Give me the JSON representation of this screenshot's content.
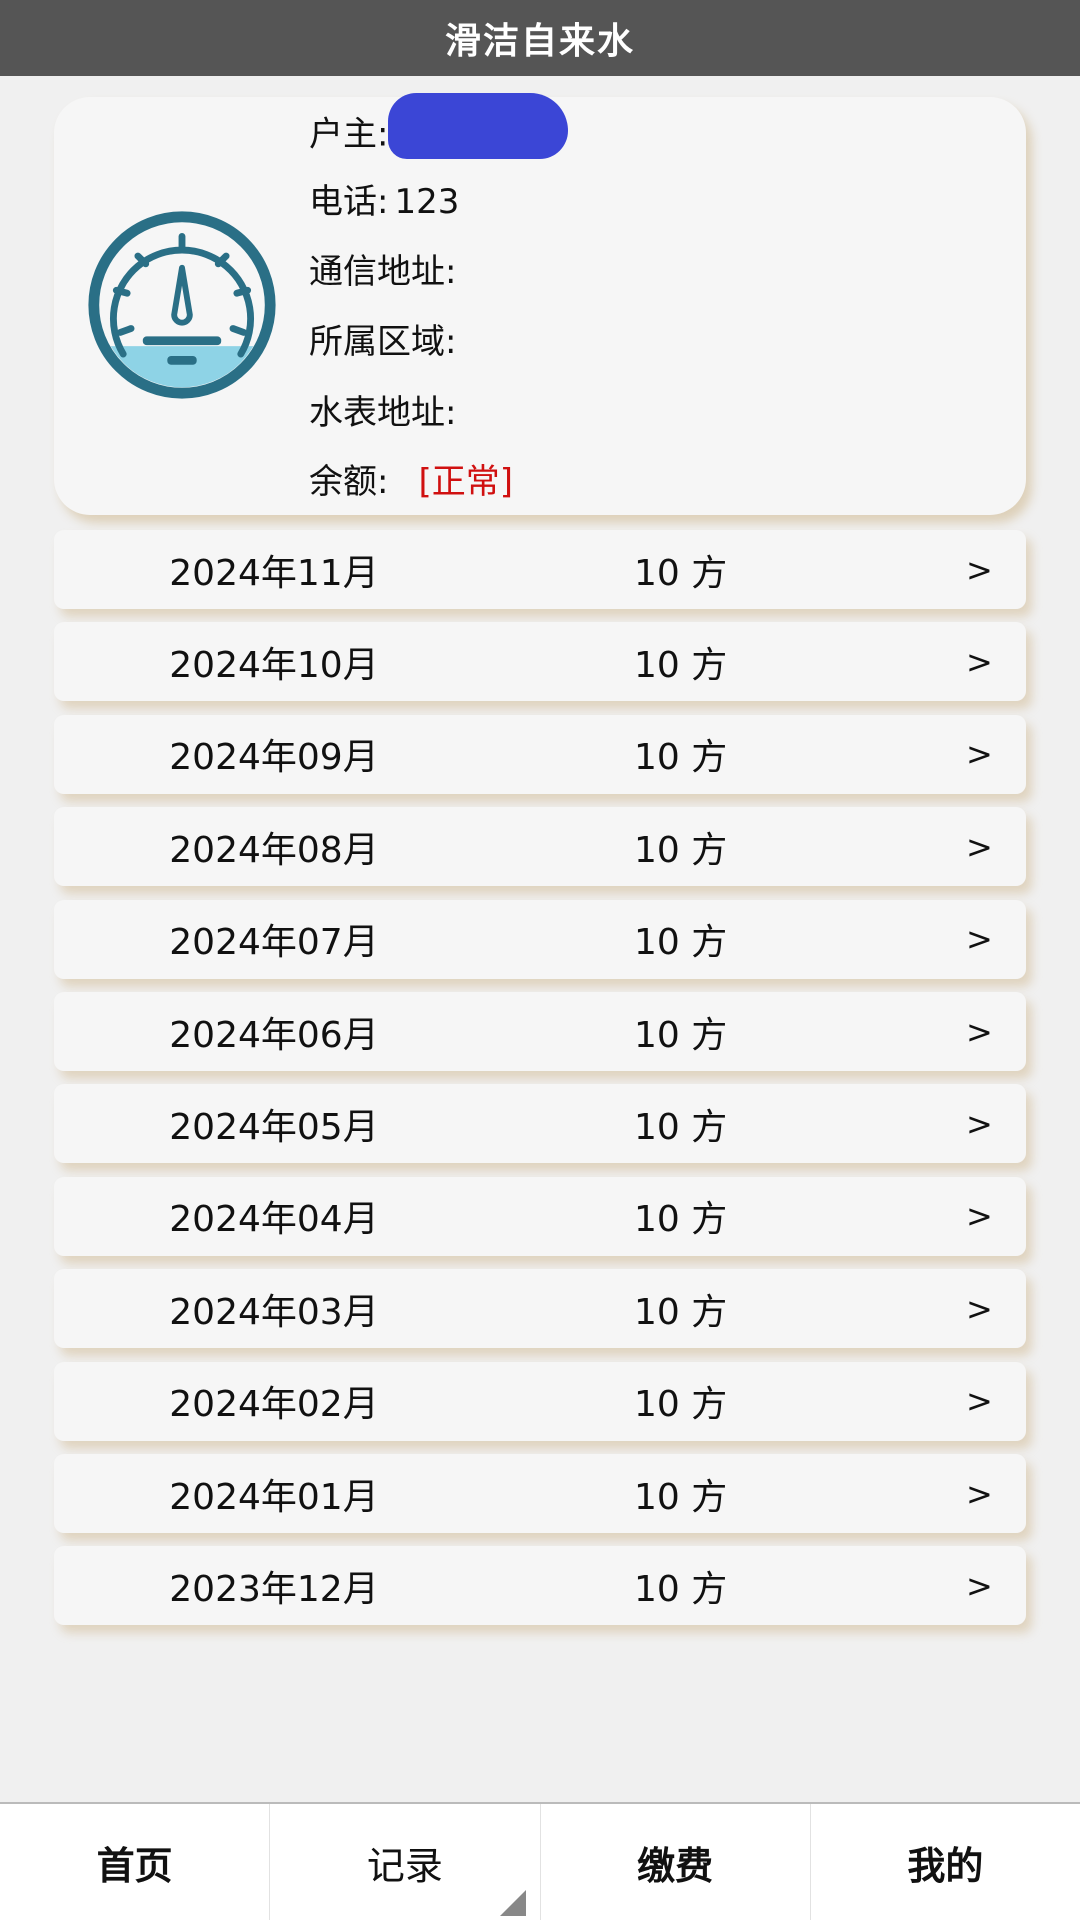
{
  "header": {
    "title": "滑洁自来水"
  },
  "account": {
    "owner_label": "户主:",
    "phone_label": "电话:",
    "phone": "123",
    "address_label": "通信地址:",
    "region_label": "所属区域:",
    "meter_address_label": "水表地址:",
    "balance_label": "余额:",
    "balance_status": "[正常]",
    "icon": "water-meter-gauge-icon"
  },
  "records": [
    {
      "month": "2024年11月",
      "amount": "10 方",
      "arrow": ">"
    },
    {
      "month": "2024年10月",
      "amount": "10 方",
      "arrow": ">"
    },
    {
      "month": "2024年09月",
      "amount": "10 方",
      "arrow": ">"
    },
    {
      "month": "2024年08月",
      "amount": "10 方",
      "arrow": ">"
    },
    {
      "month": "2024年07月",
      "amount": "10 方",
      "arrow": ">"
    },
    {
      "month": "2024年06月",
      "amount": "10 方",
      "arrow": ">"
    },
    {
      "month": "2024年05月",
      "amount": "10 方",
      "arrow": ">"
    },
    {
      "month": "2024年04月",
      "amount": "10 方",
      "arrow": ">"
    },
    {
      "month": "2024年03月",
      "amount": "10 方",
      "arrow": ">"
    },
    {
      "month": "2024年02月",
      "amount": "10 方",
      "arrow": ">"
    },
    {
      "month": "2024年01月",
      "amount": "10 方",
      "arrow": ">"
    },
    {
      "month": "2023年12月",
      "amount": "10 方",
      "arrow": ">"
    }
  ],
  "nav": [
    {
      "label": "首页"
    },
    {
      "label": "记录",
      "active": true
    },
    {
      "label": "缴费"
    },
    {
      "label": "我的"
    }
  ],
  "colors": {
    "header": "#555555",
    "status_red": "#d01010",
    "meter_teal": "#2a6f86",
    "meter_water": "#8ed3e6"
  }
}
